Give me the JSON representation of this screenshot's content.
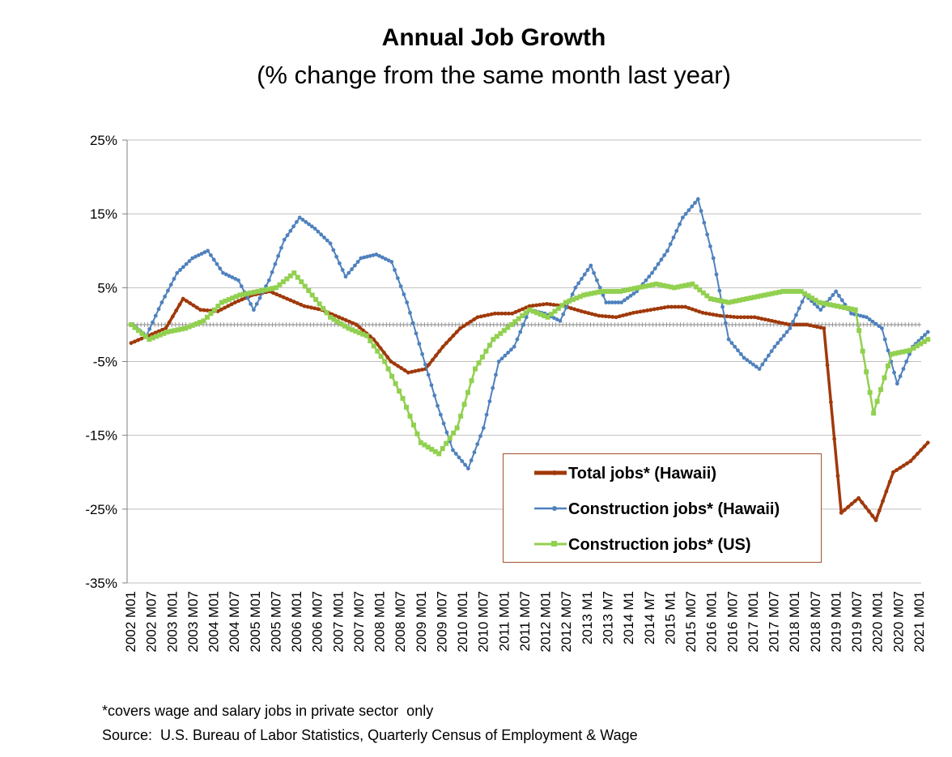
{
  "chart_data": {
    "type": "line",
    "title": "Annual Job Growth",
    "subtitle": "(% change from the same month last year)",
    "xlabel": "",
    "ylabel": "",
    "ylim": [
      -35,
      25
    ],
    "y_ticks": [
      "25%",
      "15%",
      "5%",
      "-5%",
      "-15%",
      "-25%",
      "-35%"
    ],
    "x_tick_labels": [
      "2002 M01",
      "2002 M07",
      "2003 M01",
      "2003 M07",
      "2004 M01",
      "2004 M07",
      "2005 M01",
      "2005 M07",
      "2006 M01",
      "2006 M07",
      "2007 M01",
      "2007 M07",
      "2008 M01",
      "2008 M07",
      "2009 M01",
      "2009 M07",
      "2010 M01",
      "2010 M07",
      "2011 M01",
      "2011 M07",
      "2012 M01",
      "2012 M07",
      "2013 M1",
      "2013 M7",
      "2014 M1",
      "2014 M7",
      "2015 M1",
      "2015 M07",
      "2016 M01",
      "2016 M07",
      "2017 M01",
      "2017 M07",
      "2018 M01",
      "2018 M07",
      "2019 M01",
      "2019 M07",
      "2020 M01",
      "2020 M07",
      "2021 M01"
    ],
    "x_unit": "half-year periods starting 2002 M01",
    "grid": "horizontal",
    "legend_position": "lower-right",
    "series": [
      {
        "name": "Total jobs* (Hawaii)",
        "color": "#a0390a",
        "marker": "circle",
        "values": [
          -2.5,
          -1.5,
          -0.5,
          3.5,
          2.0,
          1.8,
          3.0,
          4.0,
          4.5,
          3.5,
          2.5,
          2.0,
          1.0,
          0.0,
          -2.0,
          -5.0,
          -6.5,
          -6.0,
          -3.0,
          -0.5,
          1.0,
          1.5,
          1.5,
          2.5,
          2.8,
          2.5,
          1.8,
          1.2,
          1.0,
          1.6,
          2.0,
          2.4,
          2.4,
          1.6,
          1.2,
          1.0,
          1.0,
          0.5,
          0.0,
          0.0,
          -0.5,
          -25.5,
          -23.5,
          -26.5,
          -20.0,
          -18.5,
          -16.0
        ]
      },
      {
        "name": "Construction jobs* (Hawaii)",
        "color": "#4f81bd",
        "marker": "circle",
        "values": [
          0.0,
          -1.5,
          3.0,
          7.0,
          9.0,
          10.0,
          7.0,
          6.0,
          2.0,
          6.0,
          11.5,
          14.5,
          13.0,
          11.0,
          6.5,
          9.0,
          9.5,
          8.5,
          3.0,
          -4.0,
          -11.0,
          -17.0,
          -19.5,
          -14.0,
          -5.0,
          -3.0,
          2.0,
          1.5,
          0.5,
          5.0,
          8.0,
          3.0,
          3.0,
          4.5,
          7.0,
          10.0,
          14.5,
          17.0,
          9.0,
          -2.0,
          -4.5,
          -6.0,
          -3.0,
          -0.5,
          4.0,
          2.0,
          4.5,
          1.5,
          1.0,
          -0.5,
          -8.0,
          -3.0,
          -1.0
        ]
      },
      {
        "name": "Construction jobs* (US)",
        "color": "#92d050",
        "marker": "square",
        "values": [
          0.0,
          -2.0,
          -1.0,
          -0.5,
          0.5,
          3.0,
          4.0,
          4.5,
          5.0,
          7.0,
          4.0,
          1.0,
          -0.5,
          -1.5,
          -5.0,
          -10.0,
          -16.0,
          -17.5,
          -14.0,
          -6.0,
          -2.0,
          0.0,
          2.0,
          1.0,
          3.0,
          4.0,
          4.5,
          4.5,
          5.0,
          5.5,
          5.0,
          5.5,
          3.5,
          3.0,
          3.5,
          4.0,
          4.5,
          4.5,
          3.0,
          2.5,
          2.0,
          -12.0,
          -4.0,
          -3.5,
          -2.0
        ]
      }
    ]
  },
  "legend": {
    "items": [
      "Total jobs* (Hawaii)",
      "Construction jobs* (Hawaii)",
      "Construction jobs* (US)"
    ]
  },
  "footnote": "*covers wage and salary jobs in private sector  only",
  "source": "Source:  U.S. Bureau of Labor Statistics, Quarterly Census of Employment & Wage"
}
